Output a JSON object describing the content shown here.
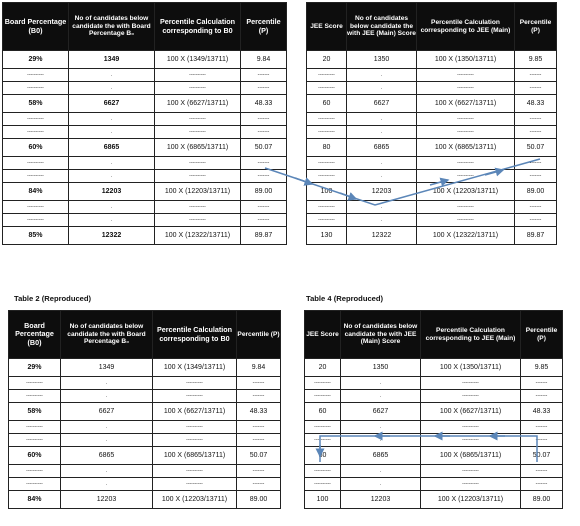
{
  "table_left_top": {
    "headers": [
      "Board Percentage (B0)",
      "No of candidates below candidate the with Board Percentage B₀",
      "Percentile Calculation corresponding to B0",
      "Percentile (P)"
    ],
    "rows": [
      {
        "type": "data",
        "cells": [
          "29%",
          "1349",
          "100 X (1349/13711)",
          "9.84"
        ]
      },
      {
        "type": "dots",
        "cells": [
          "----------",
          ".",
          "----------",
          "-------"
        ]
      },
      {
        "type": "dots",
        "cells": [
          "----------",
          ".",
          "----------",
          "-------"
        ]
      },
      {
        "type": "data",
        "cells": [
          "58%",
          "6627",
          "100 X (6627/13711)",
          "48.33"
        ]
      },
      {
        "type": "dots",
        "cells": [
          "----------",
          ".",
          "----------",
          "-------"
        ]
      },
      {
        "type": "dots",
        "cells": [
          "----------",
          ".",
          "----------",
          "-------"
        ]
      },
      {
        "type": "data",
        "cells": [
          "60%",
          "6865",
          "100 X (6865/13711)",
          "50.07"
        ]
      },
      {
        "type": "dots",
        "cells": [
          "----------",
          ".",
          "----------",
          "-------"
        ]
      },
      {
        "type": "dots",
        "cells": [
          "----------",
          ".",
          "----------",
          "-------"
        ]
      },
      {
        "type": "data",
        "cells": [
          "84%",
          "12203",
          "100 X (12203/13711)",
          "89.00"
        ]
      },
      {
        "type": "dots",
        "cells": [
          "----------",
          ".",
          "----------",
          "-------"
        ]
      },
      {
        "type": "dots",
        "cells": [
          "----------",
          ".",
          "----------",
          "-------"
        ]
      },
      {
        "type": "data",
        "cells": [
          "85%",
          "12322",
          "100 X (12322/13711)",
          "89.87"
        ]
      }
    ]
  },
  "table_right_top": {
    "headers": [
      "JEE Score",
      "No of candidates below candidate the with JEE (Main) Score",
      "Percentile Calculation corresponding to JEE (Main)",
      "Percentile (P)"
    ],
    "rows": [
      {
        "type": "data",
        "cells": [
          "20",
          "1350",
          "100 X (1350/13711)",
          "9.85"
        ]
      },
      {
        "type": "dots",
        "cells": [
          "----------",
          ".",
          "----------",
          "-------"
        ]
      },
      {
        "type": "dots",
        "cells": [
          "----------",
          ".",
          "----------",
          "-------"
        ]
      },
      {
        "type": "data",
        "cells": [
          "60",
          "6627",
          "100 X (6627/13711)",
          "48.33"
        ]
      },
      {
        "type": "dots",
        "cells": [
          "----------",
          ".",
          "----------",
          "-------"
        ]
      },
      {
        "type": "dots",
        "cells": [
          "----------",
          ".",
          "----------",
          "-------"
        ]
      },
      {
        "type": "data",
        "cells": [
          "80",
          "6865",
          "100 X (6865/13711)",
          "50.07"
        ]
      },
      {
        "type": "dots",
        "cells": [
          "----------",
          ".",
          "----------",
          "-------"
        ]
      },
      {
        "type": "dots",
        "cells": [
          "----------",
          ".",
          "----------",
          "-------"
        ]
      },
      {
        "type": "data",
        "cells": [
          "100",
          "12203",
          "100 X (12203/13711)",
          "89.00"
        ]
      },
      {
        "type": "dots",
        "cells": [
          "----------",
          ".",
          "----------",
          "-------"
        ]
      },
      {
        "type": "dots",
        "cells": [
          "----------",
          ".",
          "----------",
          "-------"
        ]
      },
      {
        "type": "data",
        "cells": [
          "130",
          "12322",
          "100 X (12322/13711)",
          "89.87"
        ]
      }
    ]
  },
  "captions": {
    "table2": "Table 2 (Reproduced)",
    "table4": "Table 4 (Reproduced)"
  },
  "table_left_bottom": {
    "headers": [
      "Board Percentage (B0)",
      "No of candidates below candidate the with Board Percentage B₀",
      "Percentile Calculation corresponding to B0",
      "Percentile (P)"
    ],
    "rows": [
      {
        "type": "data",
        "cells": [
          "29%",
          "1349",
          "100 X (1349/13711)",
          "9.84"
        ]
      },
      {
        "type": "dots",
        "cells": [
          "----------",
          ".",
          "----------",
          "-------"
        ]
      },
      {
        "type": "dots",
        "cells": [
          "----------",
          ".",
          "----------",
          "-------"
        ]
      },
      {
        "type": "data",
        "cells": [
          "58%",
          "6627",
          "100 X (6627/13711)",
          "48.33"
        ]
      },
      {
        "type": "dots",
        "cells": [
          "----------",
          ".",
          "----------",
          "-------"
        ]
      },
      {
        "type": "dots",
        "cells": [
          "----------",
          ".",
          "----------",
          "-------"
        ]
      },
      {
        "type": "data",
        "cells": [
          "60%",
          "6865",
          "100 X (6865/13711)",
          "50.07"
        ]
      },
      {
        "type": "dots",
        "cells": [
          "----------",
          ".",
          "----------",
          "-------"
        ]
      },
      {
        "type": "dots",
        "cells": [
          "----------",
          ".",
          "----------",
          "-------"
        ]
      },
      {
        "type": "data",
        "cells": [
          "84%",
          "12203",
          "100 X (12203/13711)",
          "89.00"
        ]
      }
    ]
  },
  "table_right_bottom": {
    "headers": [
      "JEE Score",
      "No of candidates below candidate the with JEE (Main) Score",
      "Percentile Calculation corresponding to JEE (Main)",
      "Percentile (P)"
    ],
    "rows": [
      {
        "type": "data",
        "cells": [
          "20",
          "1350",
          "100 X (1350/13711)",
          "9.85"
        ]
      },
      {
        "type": "dots",
        "cells": [
          "----------",
          ".",
          "----------",
          "-------"
        ]
      },
      {
        "type": "dots",
        "cells": [
          "----------",
          ".",
          "----------",
          "-------"
        ]
      },
      {
        "type": "data",
        "cells": [
          "60",
          "6627",
          "100 X (6627/13711)",
          "48.33"
        ]
      },
      {
        "type": "dots",
        "cells": [
          "----------",
          ".",
          "----------",
          "-------"
        ]
      },
      {
        "type": "dots",
        "cells": [
          "----------",
          ".",
          "----------",
          "-------"
        ]
      },
      {
        "type": "data",
        "cells": [
          "80",
          "6865",
          "100 X (6865/13711)",
          "50.07"
        ]
      },
      {
        "type": "dots",
        "cells": [
          "----------",
          ".",
          "----------",
          "-------"
        ]
      },
      {
        "type": "dots",
        "cells": [
          "----------",
          ".",
          "----------",
          "-------"
        ]
      },
      {
        "type": "data",
        "cells": [
          "100",
          "12203",
          "100 X (12203/13711)",
          "89.00"
        ]
      }
    ]
  },
  "arrow_color": "#5b86b8"
}
